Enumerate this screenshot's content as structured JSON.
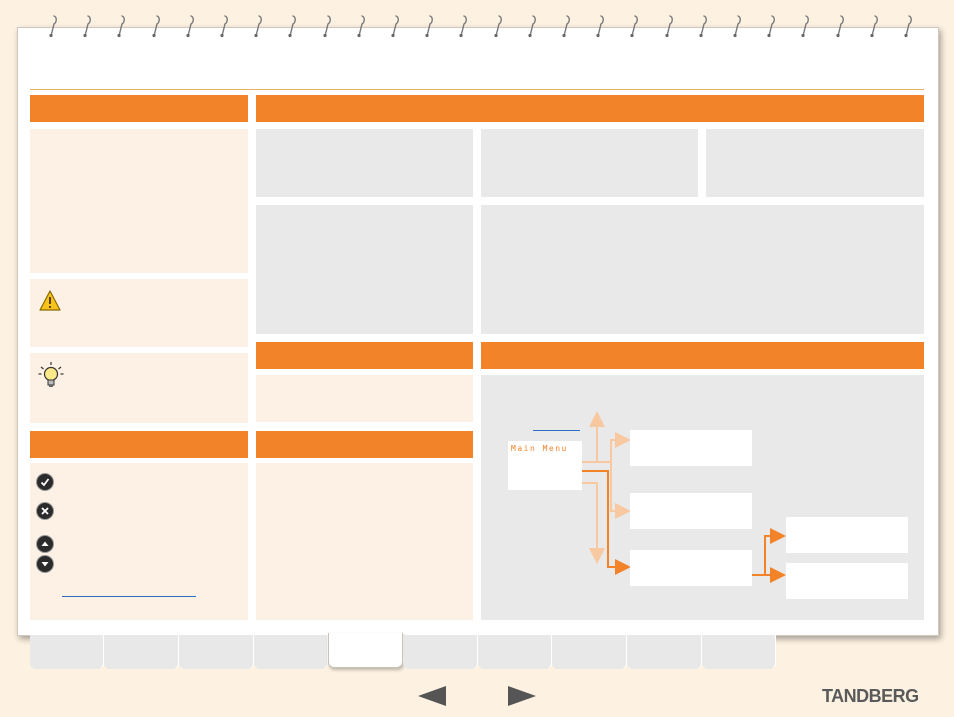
{
  "main_menu": {
    "label": "Main Menu"
  },
  "footer": {
    "logo": "TANDBERG"
  },
  "icons": {
    "warning": "warning-icon",
    "tip": "lightbulb-icon",
    "ok": "checkmark-icon",
    "cancel": "cross-icon",
    "up": "arrow-up-icon",
    "down": "arrow-down-icon",
    "prev": "previous-page-arrow",
    "next": "next-page-arrow"
  },
  "colors": {
    "accent": "#f38328",
    "cream": "#fdf1e5",
    "grey_panel": "#e9e9ea",
    "link": "#2f6fc0",
    "connector_light": "#f8c8a0"
  }
}
